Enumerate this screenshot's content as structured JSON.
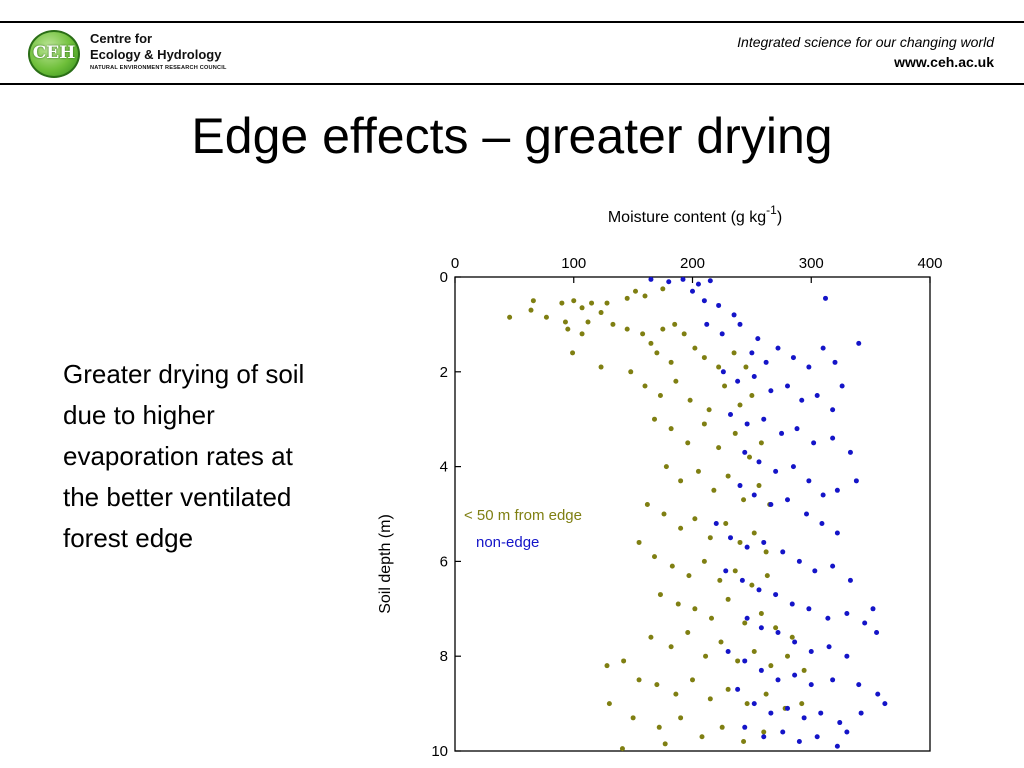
{
  "header": {
    "logo_badge": "CEH",
    "logo_line1": "Centre for",
    "logo_line2": "Ecology & Hydrology",
    "logo_line3": "NATURAL ENVIRONMENT RESEARCH COUNCIL",
    "tagline": "Integrated science for our changing world",
    "url": "www.ceh.ac.uk"
  },
  "slide": {
    "title": "Edge effects – greater drying",
    "body": "Greater drying of soil due to higher evaporation rates at the better ventilated forest edge"
  },
  "colors": {
    "edge": "#7f7f12",
    "non_edge": "#1414c8"
  },
  "chart_data": {
    "type": "scatter",
    "xlabel": "Moisture content (g kg",
    "xlabel_sup": "-1",
    "xlabel_suffix": ")",
    "ylabel": "Soil depth (m)",
    "xlim": [
      0,
      400
    ],
    "ylim": [
      0,
      10
    ],
    "y_inverted": true,
    "x_axis_position": "top",
    "x_ticks": [
      0,
      100,
      200,
      300,
      400
    ],
    "y_ticks": [
      0,
      2,
      4,
      6,
      8,
      10
    ],
    "legend_placement": "left-middle",
    "series": [
      {
        "name": "< 50 m from edge",
        "color": "#7f7f12",
        "points": [
          [
            128,
            0.55
          ],
          [
            145,
            0.45
          ],
          [
            152,
            0.3
          ],
          [
            160,
            0.4
          ],
          [
            175,
            0.25
          ],
          [
            66,
            0.5
          ],
          [
            64,
            0.7
          ],
          [
            46,
            0.85
          ],
          [
            77,
            0.85
          ],
          [
            93,
            0.95
          ],
          [
            90,
            0.55
          ],
          [
            100,
            0.5
          ],
          [
            107,
            0.65
          ],
          [
            115,
            0.55
          ],
          [
            123,
            0.75
          ],
          [
            95,
            1.1
          ],
          [
            107,
            1.2
          ],
          [
            112,
            0.95
          ],
          [
            133,
            1.0
          ],
          [
            145,
            1.1
          ],
          [
            158,
            1.2
          ],
          [
            165,
            1.4
          ],
          [
            175,
            1.1
          ],
          [
            185,
            1.0
          ],
          [
            193,
            1.2
          ],
          [
            99,
            1.6
          ],
          [
            123,
            1.9
          ],
          [
            148,
            2.0
          ],
          [
            170,
            1.6
          ],
          [
            182,
            1.8
          ],
          [
            202,
            1.5
          ],
          [
            210,
            1.7
          ],
          [
            222,
            1.9
          ],
          [
            235,
            1.6
          ],
          [
            245,
            1.9
          ],
          [
            160,
            2.3
          ],
          [
            173,
            2.5
          ],
          [
            186,
            2.2
          ],
          [
            198,
            2.6
          ],
          [
            214,
            2.8
          ],
          [
            227,
            2.3
          ],
          [
            240,
            2.7
          ],
          [
            250,
            2.5
          ],
          [
            168,
            3.0
          ],
          [
            182,
            3.2
          ],
          [
            196,
            3.5
          ],
          [
            210,
            3.1
          ],
          [
            222,
            3.6
          ],
          [
            236,
            3.3
          ],
          [
            248,
            3.8
          ],
          [
            258,
            3.5
          ],
          [
            178,
            4.0
          ],
          [
            190,
            4.3
          ],
          [
            205,
            4.1
          ],
          [
            218,
            4.5
          ],
          [
            230,
            4.2
          ],
          [
            243,
            4.7
          ],
          [
            256,
            4.4
          ],
          [
            265,
            4.8
          ],
          [
            162,
            4.8
          ],
          [
            176,
            5.0
          ],
          [
            190,
            5.3
          ],
          [
            202,
            5.1
          ],
          [
            215,
            5.5
          ],
          [
            228,
            5.2
          ],
          [
            240,
            5.6
          ],
          [
            252,
            5.4
          ],
          [
            262,
            5.8
          ],
          [
            155,
            5.6
          ],
          [
            168,
            5.9
          ],
          [
            183,
            6.1
          ],
          [
            197,
            6.3
          ],
          [
            210,
            6.0
          ],
          [
            223,
            6.4
          ],
          [
            236,
            6.2
          ],
          [
            250,
            6.5
          ],
          [
            263,
            6.3
          ],
          [
            173,
            6.7
          ],
          [
            188,
            6.9
          ],
          [
            202,
            7.0
          ],
          [
            216,
            7.2
          ],
          [
            230,
            6.8
          ],
          [
            244,
            7.3
          ],
          [
            258,
            7.1
          ],
          [
            270,
            7.4
          ],
          [
            284,
            7.6
          ],
          [
            165,
            7.6
          ],
          [
            182,
            7.8
          ],
          [
            196,
            7.5
          ],
          [
            211,
            8.0
          ],
          [
            224,
            7.7
          ],
          [
            238,
            8.1
          ],
          [
            252,
            7.9
          ],
          [
            266,
            8.2
          ],
          [
            280,
            8.0
          ],
          [
            294,
            8.3
          ],
          [
            128,
            8.2
          ],
          [
            142,
            8.1
          ],
          [
            155,
            8.5
          ],
          [
            170,
            8.6
          ],
          [
            186,
            8.8
          ],
          [
            200,
            8.5
          ],
          [
            215,
            8.9
          ],
          [
            230,
            8.7
          ],
          [
            246,
            9.0
          ],
          [
            262,
            8.8
          ],
          [
            278,
            9.1
          ],
          [
            292,
            9.0
          ],
          [
            130,
            9.0
          ],
          [
            150,
            9.3
          ],
          [
            172,
            9.5
          ],
          [
            190,
            9.3
          ],
          [
            208,
            9.7
          ],
          [
            225,
            9.5
          ],
          [
            243,
            9.8
          ],
          [
            260,
            9.6
          ],
          [
            177,
            9.85
          ],
          [
            141,
            9.95
          ]
        ]
      },
      {
        "name": "non-edge",
        "color": "#1414c8",
        "points": [
          [
            165,
            0.05
          ],
          [
            180,
            0.1
          ],
          [
            192,
            0.05
          ],
          [
            205,
            0.15
          ],
          [
            215,
            0.08
          ],
          [
            200,
            0.3
          ],
          [
            210,
            0.5
          ],
          [
            222,
            0.6
          ],
          [
            235,
            0.8
          ],
          [
            212,
            1.0
          ],
          [
            225,
            1.2
          ],
          [
            240,
            1.0
          ],
          [
            255,
            1.3
          ],
          [
            250,
            1.6
          ],
          [
            262,
            1.8
          ],
          [
            272,
            1.5
          ],
          [
            285,
            1.7
          ],
          [
            298,
            1.9
          ],
          [
            310,
            1.5
          ],
          [
            320,
            1.8
          ],
          [
            340,
            1.4
          ],
          [
            312,
            0.45
          ],
          [
            226,
            2.0
          ],
          [
            238,
            2.2
          ],
          [
            252,
            2.1
          ],
          [
            266,
            2.4
          ],
          [
            280,
            2.3
          ],
          [
            292,
            2.6
          ],
          [
            305,
            2.5
          ],
          [
            318,
            2.8
          ],
          [
            326,
            2.3
          ],
          [
            232,
            2.9
          ],
          [
            246,
            3.1
          ],
          [
            260,
            3.0
          ],
          [
            275,
            3.3
          ],
          [
            288,
            3.2
          ],
          [
            302,
            3.5
          ],
          [
            318,
            3.4
          ],
          [
            333,
            3.7
          ],
          [
            338,
            4.3
          ],
          [
            244,
            3.7
          ],
          [
            256,
            3.9
          ],
          [
            270,
            4.1
          ],
          [
            285,
            4.0
          ],
          [
            298,
            4.3
          ],
          [
            310,
            4.6
          ],
          [
            322,
            4.5
          ],
          [
            240,
            4.4
          ],
          [
            252,
            4.6
          ],
          [
            266,
            4.8
          ],
          [
            280,
            4.7
          ],
          [
            296,
            5.0
          ],
          [
            309,
            5.2
          ],
          [
            322,
            5.4
          ],
          [
            220,
            5.2
          ],
          [
            232,
            5.5
          ],
          [
            246,
            5.7
          ],
          [
            260,
            5.6
          ],
          [
            276,
            5.8
          ],
          [
            290,
            6.0
          ],
          [
            303,
            6.2
          ],
          [
            318,
            6.1
          ],
          [
            333,
            6.4
          ],
          [
            228,
            6.2
          ],
          [
            242,
            6.4
          ],
          [
            256,
            6.6
          ],
          [
            270,
            6.7
          ],
          [
            284,
            6.9
          ],
          [
            298,
            7.0
          ],
          [
            314,
            7.2
          ],
          [
            330,
            7.1
          ],
          [
            345,
            7.3
          ],
          [
            352,
            7.0
          ],
          [
            355,
            7.5
          ],
          [
            246,
            7.2
          ],
          [
            258,
            7.4
          ],
          [
            272,
            7.5
          ],
          [
            286,
            7.7
          ],
          [
            300,
            7.9
          ],
          [
            315,
            7.8
          ],
          [
            330,
            8.0
          ],
          [
            230,
            7.9
          ],
          [
            244,
            8.1
          ],
          [
            258,
            8.3
          ],
          [
            272,
            8.5
          ],
          [
            286,
            8.4
          ],
          [
            300,
            8.6
          ],
          [
            318,
            8.5
          ],
          [
            340,
            8.6
          ],
          [
            356,
            8.8
          ],
          [
            362,
            9.0
          ],
          [
            238,
            8.7
          ],
          [
            252,
            9.0
          ],
          [
            266,
            9.2
          ],
          [
            280,
            9.1
          ],
          [
            294,
            9.3
          ],
          [
            308,
            9.2
          ],
          [
            324,
            9.4
          ],
          [
            342,
            9.2
          ],
          [
            244,
            9.5
          ],
          [
            260,
            9.7
          ],
          [
            276,
            9.6
          ],
          [
            290,
            9.8
          ],
          [
            305,
            9.7
          ],
          [
            322,
            9.9
          ],
          [
            330,
            9.6
          ]
        ]
      }
    ]
  }
}
